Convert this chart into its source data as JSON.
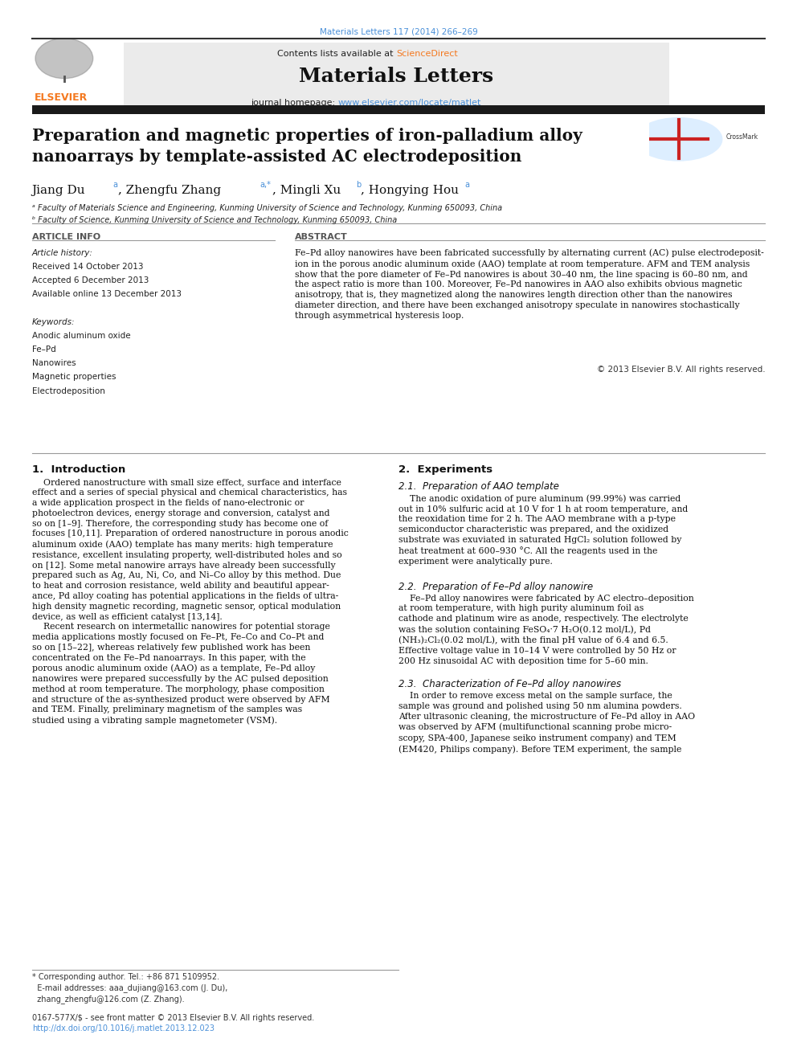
{
  "page_width": 9.92,
  "page_height": 13.23,
  "bg_color": "#ffffff",
  "top_citation": "Materials Letters 117 (2014) 266–269",
  "top_citation_color": "#4a90d9",
  "journal_url": "www.elsevier.com/locate/matlet",
  "journal_url_color": "#4a90d9",
  "dark_bar_color": "#1a1a1a",
  "article_title": "Preparation and magnetic properties of iron-palladium alloy\nnanoarrays by template-assisted AC electrodeposition",
  "affil_a": "ᵃ Faculty of Materials Science and Engineering, Kunming University of Science and Technology, Kunming 650093, China",
  "affil_b": "ᵇ Faculty of Science, Kunming University of Science and Technology, Kunming 650093, China",
  "article_info_title": "ARTICLE INFO",
  "abstract_title": "ABSTRACT",
  "received": "Received 14 October 2013",
  "accepted": "Accepted 6 December 2013",
  "available": "Available online 13 December 2013",
  "keyword1": "Anodic aluminum oxide",
  "keyword2": "Fe–Pd",
  "keyword3": "Nanowires",
  "keyword4": "Magnetic properties",
  "keyword5": "Electrodeposition",
  "abstract_text": "Fe–Pd alloy nanowires have been fabricated successfully by alternating current (AC) pulse electrodeposition in the porous anodic aluminum oxide (AAO) template at room temperature. AFM and TEM analysis show that the pore diameter of Fe–Pd nanowires is about 30–40 nm, the line spacing is 60–80 nm, and the aspect ratio is more than 100. Moreover, Fe–Pd nanowires in AAO also exhibits obvious magnetic anisotropy, that is, they magnetized along the nanowires length direction other than the nanowires diameter direction, and there have been exchanged anisotropy speculate in nanowires stochastically through asymmetrical hysteresis loop.",
  "copyright": "© 2013 Elsevier B.V. All rights reserved.",
  "section1_title": "1.  Introduction",
  "section2_title": "2.  Experiments",
  "section21_title": "2.1.  Preparation of AAO template",
  "section22_title": "2.2.  Preparation of Fe–Pd alloy nanowire",
  "section23_title": "2.3.  Characterization of Fe–Pd alloy nanowires",
  "footer_issn": "0167-577X/$ - see front matter © 2013 Elsevier B.V. All rights reserved.",
  "footer_doi": "http://dx.doi.org/10.1016/j.matlet.2013.12.023",
  "elsevier_color": "#f47920",
  "link_color": "#4a90d9"
}
